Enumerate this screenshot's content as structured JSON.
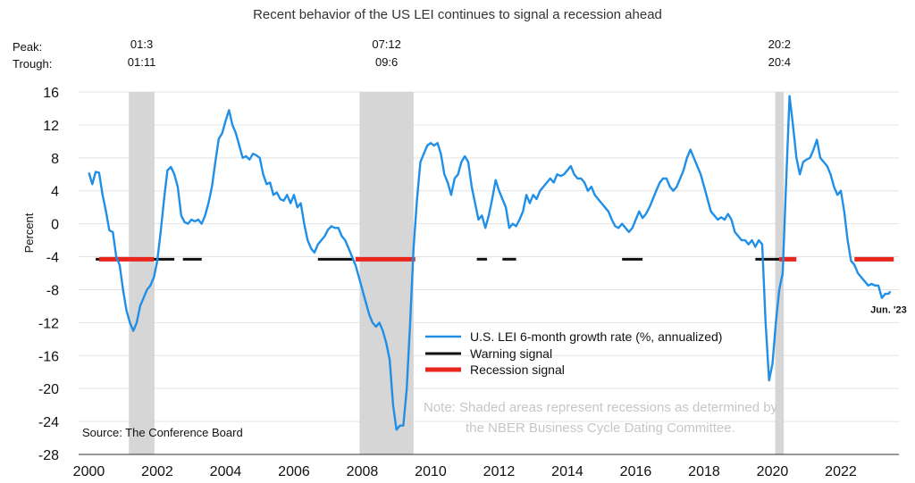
{
  "chart_data": {
    "type": "line",
    "title": "Recent behavior of the US LEI continues to signal a recession ahead",
    "ylabel": "Percent",
    "xlabel": "",
    "ylim": [
      -28,
      16
    ],
    "xlim": [
      1999.7,
      2023.7
    ],
    "y_ticks": [
      16,
      12,
      8,
      4,
      0,
      -4,
      -8,
      -12,
      -16,
      -20,
      -24,
      -28
    ],
    "x_ticks": [
      2000,
      2002,
      2004,
      2006,
      2008,
      2010,
      2012,
      2014,
      2016,
      2018,
      2020,
      2022
    ],
    "grid": "horizontal",
    "peak_label": "Peak:",
    "trough_label": "Trough:",
    "recessions": [
      {
        "start": 2001.17,
        "end": 2001.92,
        "peak": "01:3",
        "trough": "01:11"
      },
      {
        "start": 2007.92,
        "end": 2009.5,
        "peak": "07:12",
        "trough": "09:6"
      },
      {
        "start": 2020.08,
        "end": 2020.33,
        "peak": "20:2",
        "trough": "20:4"
      }
    ],
    "signal_level": -4.3,
    "warning_signal": [
      [
        2000.2,
        2001.0
      ],
      [
        2001.9,
        2002.5
      ],
      [
        2002.75,
        2003.3
      ],
      [
        2006.7,
        2007.75
      ],
      [
        2011.35,
        2011.65
      ],
      [
        2012.1,
        2012.5
      ],
      [
        2015.6,
        2016.2
      ],
      [
        2019.5,
        2020.2
      ]
    ],
    "recession_signal": [
      [
        2000.3,
        2001.9
      ],
      [
        2007.8,
        2009.55
      ],
      [
        2020.2,
        2020.7
      ],
      [
        2022.4,
        2023.55
      ]
    ],
    "series": [
      {
        "name": "U.S. LEI 6-month growth rate (%, annualized)",
        "color": "#1f8fe8",
        "points": [
          [
            2000.0,
            6.2
          ],
          [
            2000.1,
            4.8
          ],
          [
            2000.2,
            6.3
          ],
          [
            2000.3,
            6.2
          ],
          [
            2000.4,
            3.5
          ],
          [
            2000.5,
            1.5
          ],
          [
            2000.6,
            -0.8
          ],
          [
            2000.7,
            -1.0
          ],
          [
            2000.8,
            -4.0
          ],
          [
            2000.9,
            -5.0
          ],
          [
            2001.0,
            -8.0
          ],
          [
            2001.1,
            -10.5
          ],
          [
            2001.2,
            -12.0
          ],
          [
            2001.3,
            -13.0
          ],
          [
            2001.4,
            -12.0
          ],
          [
            2001.5,
            -10.0
          ],
          [
            2001.6,
            -9.0
          ],
          [
            2001.7,
            -8.0
          ],
          [
            2001.8,
            -7.5
          ],
          [
            2001.9,
            -6.5
          ],
          [
            2002.0,
            -4.5
          ],
          [
            2002.1,
            -1.0
          ],
          [
            2002.2,
            3.0
          ],
          [
            2002.3,
            6.5
          ],
          [
            2002.4,
            6.9
          ],
          [
            2002.5,
            6.0
          ],
          [
            2002.6,
            4.5
          ],
          [
            2002.7,
            1.0
          ],
          [
            2002.8,
            0.2
          ],
          [
            2002.9,
            0.0
          ],
          [
            2003.0,
            0.5
          ],
          [
            2003.1,
            0.3
          ],
          [
            2003.2,
            0.5
          ],
          [
            2003.3,
            0.0
          ],
          [
            2003.4,
            1.0
          ],
          [
            2003.5,
            2.5
          ],
          [
            2003.6,
            4.5
          ],
          [
            2003.7,
            7.5
          ],
          [
            2003.8,
            10.3
          ],
          [
            2003.9,
            11.0
          ],
          [
            2004.0,
            12.5
          ],
          [
            2004.1,
            13.8
          ],
          [
            2004.2,
            12.0
          ],
          [
            2004.3,
            11.0
          ],
          [
            2004.4,
            9.5
          ],
          [
            2004.5,
            8.0
          ],
          [
            2004.6,
            8.2
          ],
          [
            2004.7,
            7.8
          ],
          [
            2004.8,
            8.5
          ],
          [
            2004.9,
            8.3
          ],
          [
            2005.0,
            8.0
          ],
          [
            2005.1,
            6.0
          ],
          [
            2005.2,
            4.8
          ],
          [
            2005.3,
            5.0
          ],
          [
            2005.4,
            3.5
          ],
          [
            2005.5,
            3.8
          ],
          [
            2005.6,
            3.0
          ],
          [
            2005.7,
            2.8
          ],
          [
            2005.8,
            3.5
          ],
          [
            2005.9,
            2.5
          ],
          [
            2006.0,
            3.5
          ],
          [
            2006.1,
            2.0
          ],
          [
            2006.2,
            2.5
          ],
          [
            2006.3,
            0.0
          ],
          [
            2006.4,
            -2.0
          ],
          [
            2006.5,
            -3.0
          ],
          [
            2006.6,
            -3.5
          ],
          [
            2006.7,
            -2.5
          ],
          [
            2006.8,
            -2.0
          ],
          [
            2006.9,
            -1.5
          ],
          [
            2007.0,
            -0.7
          ],
          [
            2007.1,
            -0.3
          ],
          [
            2007.2,
            -0.5
          ],
          [
            2007.3,
            -0.5
          ],
          [
            2007.4,
            -1.5
          ],
          [
            2007.5,
            -2.0
          ],
          [
            2007.6,
            -3.0
          ],
          [
            2007.7,
            -4.0
          ],
          [
            2007.8,
            -5.0
          ],
          [
            2007.9,
            -6.5
          ],
          [
            2008.0,
            -8.0
          ],
          [
            2008.1,
            -9.5
          ],
          [
            2008.2,
            -11.0
          ],
          [
            2008.3,
            -12.0
          ],
          [
            2008.4,
            -12.5
          ],
          [
            2008.5,
            -12.0
          ],
          [
            2008.6,
            -13.0
          ],
          [
            2008.7,
            -14.5
          ],
          [
            2008.8,
            -16.5
          ],
          [
            2008.9,
            -22.0
          ],
          [
            2009.0,
            -25.0
          ],
          [
            2009.1,
            -24.5
          ],
          [
            2009.2,
            -24.5
          ],
          [
            2009.3,
            -20.0
          ],
          [
            2009.4,
            -12.0
          ],
          [
            2009.5,
            -3.0
          ],
          [
            2009.6,
            3.0
          ],
          [
            2009.7,
            7.5
          ],
          [
            2009.8,
            8.5
          ],
          [
            2009.9,
            9.5
          ],
          [
            2010.0,
            9.8
          ],
          [
            2010.1,
            9.5
          ],
          [
            2010.2,
            9.8
          ],
          [
            2010.3,
            8.5
          ],
          [
            2010.4,
            6.0
          ],
          [
            2010.5,
            5.0
          ],
          [
            2010.6,
            3.5
          ],
          [
            2010.7,
            5.5
          ],
          [
            2010.8,
            6.0
          ],
          [
            2010.9,
            7.5
          ],
          [
            2011.0,
            8.2
          ],
          [
            2011.1,
            7.5
          ],
          [
            2011.2,
            4.5
          ],
          [
            2011.3,
            2.5
          ],
          [
            2011.4,
            0.5
          ],
          [
            2011.5,
            1.0
          ],
          [
            2011.6,
            -0.5
          ],
          [
            2011.7,
            1.0
          ],
          [
            2011.8,
            3.0
          ],
          [
            2011.9,
            5.3
          ],
          [
            2012.0,
            4.0
          ],
          [
            2012.1,
            3.0
          ],
          [
            2012.2,
            2.0
          ],
          [
            2012.3,
            -0.5
          ],
          [
            2012.4,
            0.0
          ],
          [
            2012.5,
            -0.3
          ],
          [
            2012.6,
            0.5
          ],
          [
            2012.7,
            1.5
          ],
          [
            2012.8,
            3.5
          ],
          [
            2012.9,
            2.5
          ],
          [
            2013.0,
            3.5
          ],
          [
            2013.1,
            3.0
          ],
          [
            2013.2,
            4.0
          ],
          [
            2013.3,
            4.5
          ],
          [
            2013.4,
            5.0
          ],
          [
            2013.5,
            5.5
          ],
          [
            2013.6,
            5.0
          ],
          [
            2013.7,
            6.0
          ],
          [
            2013.8,
            5.8
          ],
          [
            2013.9,
            6.0
          ],
          [
            2014.0,
            6.5
          ],
          [
            2014.1,
            7.0
          ],
          [
            2014.2,
            6.0
          ],
          [
            2014.3,
            5.5
          ],
          [
            2014.4,
            5.5
          ],
          [
            2014.5,
            5.0
          ],
          [
            2014.6,
            4.0
          ],
          [
            2014.7,
            4.5
          ],
          [
            2014.8,
            3.5
          ],
          [
            2014.9,
            3.0
          ],
          [
            2015.0,
            2.5
          ],
          [
            2015.1,
            2.0
          ],
          [
            2015.2,
            1.5
          ],
          [
            2015.3,
            0.5
          ],
          [
            2015.4,
            -0.3
          ],
          [
            2015.5,
            -0.5
          ],
          [
            2015.6,
            0.0
          ],
          [
            2015.7,
            -0.5
          ],
          [
            2015.8,
            -1.0
          ],
          [
            2015.9,
            -0.5
          ],
          [
            2016.0,
            0.5
          ],
          [
            2016.1,
            1.5
          ],
          [
            2016.2,
            0.7
          ],
          [
            2016.3,
            1.2
          ],
          [
            2016.4,
            2.0
          ],
          [
            2016.5,
            3.0
          ],
          [
            2016.6,
            4.0
          ],
          [
            2016.7,
            5.0
          ],
          [
            2016.8,
            5.5
          ],
          [
            2016.9,
            5.5
          ],
          [
            2017.0,
            4.5
          ],
          [
            2017.1,
            4.0
          ],
          [
            2017.2,
            4.5
          ],
          [
            2017.3,
            5.5
          ],
          [
            2017.4,
            6.5
          ],
          [
            2017.5,
            8.0
          ],
          [
            2017.6,
            9.0
          ],
          [
            2017.7,
            8.0
          ],
          [
            2017.8,
            7.0
          ],
          [
            2017.9,
            6.0
          ],
          [
            2018.0,
            4.5
          ],
          [
            2018.1,
            3.0
          ],
          [
            2018.2,
            1.5
          ],
          [
            2018.3,
            1.0
          ],
          [
            2018.4,
            0.5
          ],
          [
            2018.5,
            0.8
          ],
          [
            2018.6,
            0.5
          ],
          [
            2018.7,
            1.2
          ],
          [
            2018.8,
            0.5
          ],
          [
            2018.9,
            -1.0
          ],
          [
            2019.0,
            -1.5
          ],
          [
            2019.1,
            -2.0
          ],
          [
            2019.2,
            -2.0
          ],
          [
            2019.3,
            -2.5
          ],
          [
            2019.4,
            -2.0
          ],
          [
            2019.5,
            -2.8
          ],
          [
            2019.6,
            -2.0
          ],
          [
            2019.7,
            -2.5
          ],
          [
            2019.8,
            -12.0
          ],
          [
            2019.9,
            -19.0
          ],
          [
            2020.0,
            -17.0
          ],
          [
            2020.1,
            -12.0
          ],
          [
            2020.2,
            -8.0
          ],
          [
            2020.3,
            -6.0
          ],
          [
            2020.4,
            5.0
          ],
          [
            2020.5,
            15.5
          ],
          [
            2020.6,
            12.0
          ],
          [
            2020.7,
            8.0
          ],
          [
            2020.8,
            6.0
          ],
          [
            2020.9,
            7.5
          ],
          [
            2021.0,
            7.8
          ],
          [
            2021.1,
            8.0
          ],
          [
            2021.2,
            9.0
          ],
          [
            2021.3,
            10.2
          ],
          [
            2021.4,
            8.0
          ],
          [
            2021.5,
            7.5
          ],
          [
            2021.6,
            7.0
          ],
          [
            2021.7,
            6.0
          ],
          [
            2021.8,
            4.5
          ],
          [
            2021.9,
            3.5
          ],
          [
            2022.0,
            4.0
          ],
          [
            2022.1,
            1.5
          ],
          [
            2022.2,
            -2.0
          ],
          [
            2022.3,
            -4.5
          ],
          [
            2022.4,
            -5.0
          ],
          [
            2022.5,
            -6.0
          ],
          [
            2022.6,
            -6.5
          ],
          [
            2022.7,
            -7.0
          ],
          [
            2022.8,
            -7.5
          ],
          [
            2022.9,
            -7.3
          ],
          [
            2023.0,
            -7.5
          ],
          [
            2023.1,
            -7.5
          ],
          [
            2023.2,
            -9.0
          ],
          [
            2023.3,
            -8.5
          ],
          [
            2023.4,
            -8.5
          ],
          [
            2023.45,
            -8.2
          ]
        ]
      }
    ],
    "legend": [
      {
        "label": "U.S. LEI 6-month growth rate (%, annualized)",
        "color": "#1f8fe8",
        "kind": "thin"
      },
      {
        "label": "Warning signal",
        "color": "#111111",
        "kind": "medium"
      },
      {
        "label": "Recession signal",
        "color": "#e8261c",
        "kind": "thick"
      }
    ],
    "legend_position": "center-right",
    "last_point_label": "Jun. '23",
    "note_line1": "Note: Shaded areas represent recessions as determined by",
    "note_line2": "the NBER Business Cycle Dating Committee.",
    "source": "Source: The Conference Board",
    "colors": {
      "line": "#1f8fe8",
      "recession_shade": "#d6d6d6",
      "warning": "#111111",
      "recession_signal": "#e8261c",
      "grid": "#e3e3e3",
      "note": "#c6c6c6"
    }
  }
}
